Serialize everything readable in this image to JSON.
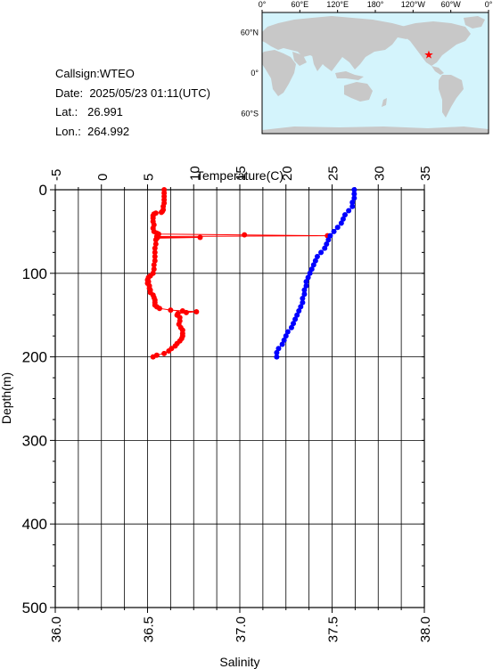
{
  "station": {
    "callsign_label": "Callsign:",
    "callsign": "WTEO",
    "date_label": "Date:",
    "date": "2025/05/23 01:11(UTC)",
    "lat_label": "Lat.:",
    "lat": "26.991",
    "lon_label": "Lon.:",
    "lon": "264.992"
  },
  "map": {
    "top_labels": [
      "0°",
      "60°E",
      "120°E",
      "180°",
      "120°W",
      "60°W",
      "0°"
    ],
    "left_labels": [
      "60°N",
      "0°",
      "60°S"
    ],
    "ocean_color": "#d4f4fc",
    "land_color": "#c8c8c8",
    "marker_color": "#ff0000",
    "marker": {
      "lon": 264.992,
      "lat": 26.991
    }
  },
  "chart_data": {
    "type": "line",
    "xlabel_top": "Temperature(C)",
    "xlabel_bottom": "Salinity",
    "ylabel": "Depth(m)",
    "temp_ticks": [
      "-5",
      "0",
      "5",
      "10",
      "15",
      "20",
      "25",
      "30",
      "35"
    ],
    "salinity_ticks": [
      "36.0",
      "36.5",
      "37.0",
      "37.5",
      "38.0"
    ],
    "depth_ticks": [
      "0",
      "100",
      "200",
      "300",
      "400",
      "500"
    ],
    "xlim_temperature": [
      -5,
      35
    ],
    "xlim_salinity": [
      36.0,
      38.0
    ],
    "ylim_depth": [
      0,
      500
    ],
    "grid": true,
    "series": [
      {
        "color": "#ff0000",
        "axis": "temperature",
        "points": [
          [
            6.8,
            0
          ],
          [
            6.8,
            4
          ],
          [
            6.8,
            8
          ],
          [
            6.8,
            12
          ],
          [
            6.8,
            16
          ],
          [
            6.7,
            20
          ],
          [
            6.7,
            24
          ],
          [
            6.6,
            26
          ],
          [
            6.5,
            27
          ],
          [
            5.9,
            28
          ],
          [
            5.7,
            29
          ],
          [
            5.6,
            31
          ],
          [
            5.6,
            34
          ],
          [
            5.6,
            38
          ],
          [
            5.7,
            42
          ],
          [
            5.6,
            46
          ],
          [
            5.7,
            50
          ],
          [
            6.0,
            52
          ],
          [
            6.2,
            53
          ],
          [
            15.5,
            54
          ],
          [
            24.5,
            55
          ],
          [
            6.0,
            56
          ],
          [
            6.1,
            57
          ],
          [
            10.7,
            57
          ],
          [
            6.0,
            58
          ],
          [
            5.9,
            60
          ],
          [
            5.9,
            65
          ],
          [
            5.8,
            70
          ],
          [
            5.8,
            75
          ],
          [
            5.8,
            80
          ],
          [
            5.8,
            85
          ],
          [
            5.7,
            90
          ],
          [
            5.7,
            95
          ],
          [
            5.6,
            100
          ],
          [
            5.3,
            103
          ],
          [
            5.1,
            105
          ],
          [
            5.0,
            108
          ],
          [
            5.1,
            110
          ],
          [
            5.0,
            112
          ],
          [
            5.2,
            115
          ],
          [
            5.2,
            118
          ],
          [
            5.3,
            120
          ],
          [
            5.3,
            123
          ],
          [
            5.6,
            126
          ],
          [
            5.7,
            129
          ],
          [
            5.8,
            132
          ],
          [
            5.8,
            135
          ],
          [
            5.8,
            138
          ],
          [
            6.0,
            140
          ],
          [
            6.3,
            142
          ],
          [
            7.5,
            144
          ],
          [
            8.8,
            145
          ],
          [
            10.3,
            146
          ],
          [
            9.2,
            147
          ],
          [
            8.3,
            148
          ],
          [
            8.2,
            150
          ],
          [
            8.5,
            153
          ],
          [
            8.5,
            157
          ],
          [
            8.4,
            161
          ],
          [
            8.6,
            165
          ],
          [
            8.8,
            168
          ],
          [
            8.8,
            172
          ],
          [
            8.8,
            175
          ],
          [
            8.7,
            178
          ],
          [
            8.5,
            181
          ],
          [
            8.2,
            184
          ],
          [
            8.0,
            187
          ],
          [
            7.6,
            190
          ],
          [
            7.3,
            193
          ],
          [
            6.8,
            196
          ],
          [
            6.0,
            198
          ],
          [
            5.6,
            200
          ]
        ]
      },
      {
        "color": "#0000ff",
        "axis": "salinity",
        "points": [
          [
            37.62,
            0
          ],
          [
            37.62,
            5
          ],
          [
            37.62,
            10
          ],
          [
            37.61,
            15
          ],
          [
            37.61,
            20
          ],
          [
            37.59,
            25
          ],
          [
            37.57,
            30
          ],
          [
            37.56,
            35
          ],
          [
            37.55,
            40
          ],
          [
            37.53,
            45
          ],
          [
            37.51,
            50
          ],
          [
            37.49,
            55
          ],
          [
            37.48,
            60
          ],
          [
            37.47,
            65
          ],
          [
            37.46,
            70
          ],
          [
            37.44,
            75
          ],
          [
            37.42,
            80
          ],
          [
            37.41,
            85
          ],
          [
            37.4,
            90
          ],
          [
            37.39,
            95
          ],
          [
            37.38,
            100
          ],
          [
            37.37,
            105
          ],
          [
            37.36,
            110
          ],
          [
            37.36,
            115
          ],
          [
            37.35,
            120
          ],
          [
            37.35,
            125
          ],
          [
            37.34,
            130
          ],
          [
            37.34,
            135
          ],
          [
            37.33,
            140
          ],
          [
            37.32,
            145
          ],
          [
            37.31,
            150
          ],
          [
            37.3,
            155
          ],
          [
            37.29,
            160
          ],
          [
            37.28,
            165
          ],
          [
            37.26,
            170
          ],
          [
            37.25,
            175
          ],
          [
            37.24,
            180
          ],
          [
            37.23,
            185
          ],
          [
            37.21,
            190
          ],
          [
            37.2,
            195
          ],
          [
            37.2,
            200
          ]
        ]
      }
    ]
  }
}
